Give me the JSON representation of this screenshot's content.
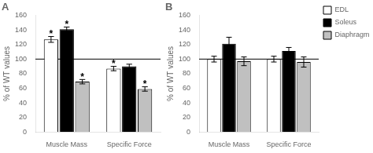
{
  "chart_data": [
    {
      "type": "bar",
      "title": "A",
      "y_label": "% of WT values",
      "categories": [
        "Muscle Mass",
        "Specific Force"
      ],
      "series": [
        {
          "name": "EDL",
          "color": "white",
          "values": [
            127,
            87
          ],
          "errors": [
            4,
            3
          ]
        },
        {
          "name": "Soleus",
          "color": "black",
          "values": [
            141,
            90
          ],
          "errors": [
            3,
            3
          ]
        },
        {
          "name": "Diaphragm",
          "color": "#c0c0c0",
          "values": [
            69,
            59
          ],
          "errors": [
            3,
            3
          ]
        }
      ],
      "annotations": [
        {
          "text": "*",
          "series": "EDL",
          "category": "Muscle Mass"
        },
        {
          "text": "*",
          "series": "EDL",
          "category": "Specific Force"
        },
        {
          "text": "*",
          "series": "Soleus",
          "category": "Muscle Mass"
        },
        {
          "text": "*",
          "series": "Diaphragm",
          "category": "Muscle Mass"
        },
        {
          "text": "*",
          "series": "Diaphragm",
          "category": "Specific Force"
        }
      ],
      "hline": 100,
      "ylim": [
        0,
        160
      ],
      "yticks": [
        0,
        20,
        40,
        60,
        80,
        100,
        120,
        140,
        160
      ],
      "grid": false
    },
    {
      "type": "bar",
      "title": "B",
      "y_label": "% of WT values",
      "categories": [
        "Muscle Mass",
        "Specific Force"
      ],
      "series": [
        {
          "name": "EDL",
          "color": "white",
          "values": [
            100,
            100
          ],
          "errors": [
            4,
            4
          ]
        },
        {
          "name": "Soleus",
          "color": "black",
          "values": [
            121,
            111
          ],
          "errors": [
            9,
            5
          ]
        },
        {
          "name": "Diaphragm",
          "color": "#c0c0c0",
          "values": [
            97,
            96
          ],
          "errors": [
            6,
            7
          ]
        }
      ],
      "hline": 100,
      "ylim": [
        0,
        160
      ],
      "yticks": [
        0,
        20,
        40,
        60,
        80,
        100,
        120,
        140,
        160
      ],
      "grid": false,
      "legend": "right"
    }
  ]
}
